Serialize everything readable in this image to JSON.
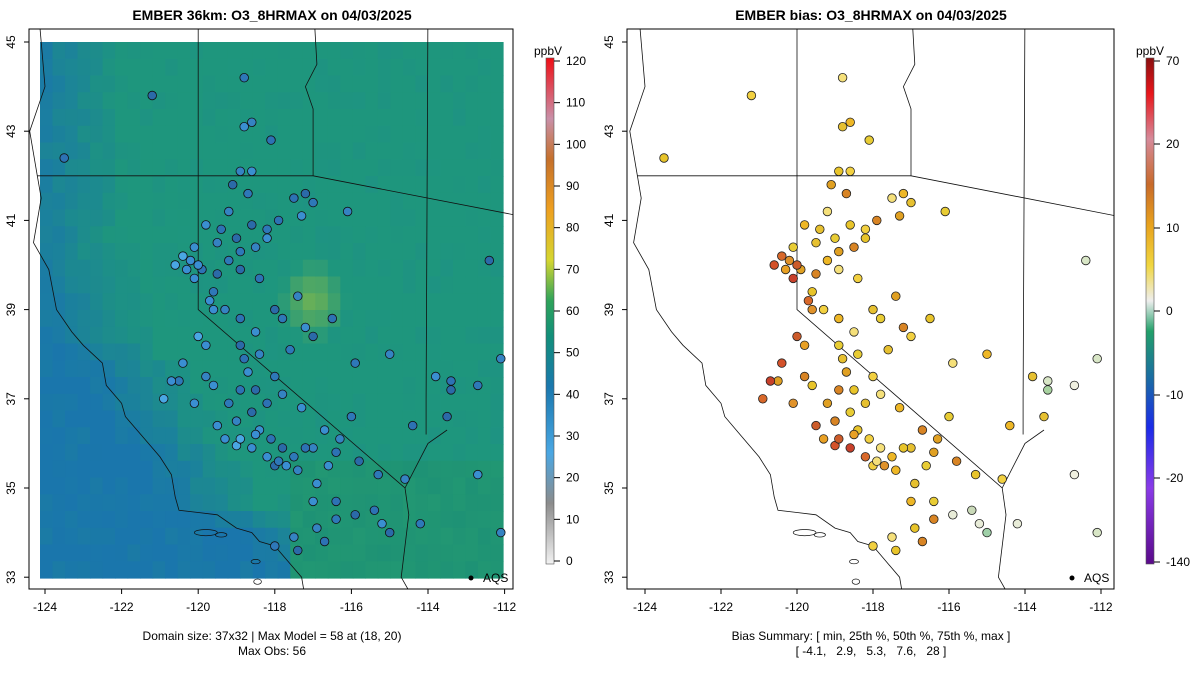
{
  "left_panel": {
    "title": "EMBER 36km: O3_8HRMAX on 04/03/2025",
    "colorbar_unit": "ppbV",
    "colorbar_ticks": [
      "120",
      "110",
      "100",
      "90",
      "80",
      "70",
      "60",
      "50",
      "40",
      "30",
      "20",
      "10",
      "0"
    ],
    "footer_line1": "Domain size: 37x32 | Max Model = 58 at (18, 20)",
    "footer_line2": "Max Obs: 56",
    "marker_label": "AQS"
  },
  "right_panel": {
    "title": "EMBER bias: O3_8HRMAX on 04/03/2025",
    "colorbar_unit": "ppbV",
    "colorbar_ticks": [
      "70",
      "20",
      "10",
      "0",
      "-10",
      "-20",
      "-140"
    ],
    "footer_line1": "Bias Summary: [ min, 25th %, 50th %, 75th %, max ]",
    "footer_line2": "[ -4.1,   2.9,   5.3,   7.6,   28 ]",
    "marker_label": "AQS"
  },
  "axes": {
    "x_ticks": [
      "-124",
      "-122",
      "-120",
      "-118",
      "-116",
      "-114",
      "-112"
    ],
    "y_ticks": [
      "45",
      "43",
      "41",
      "39",
      "37",
      "35",
      "33"
    ]
  },
  "colors": {
    "ocean_field": "#1a78ae",
    "land_field": "#1f9a80",
    "obs_point": "#2d72b4",
    "bias_point": "#e8c42a"
  }
}
